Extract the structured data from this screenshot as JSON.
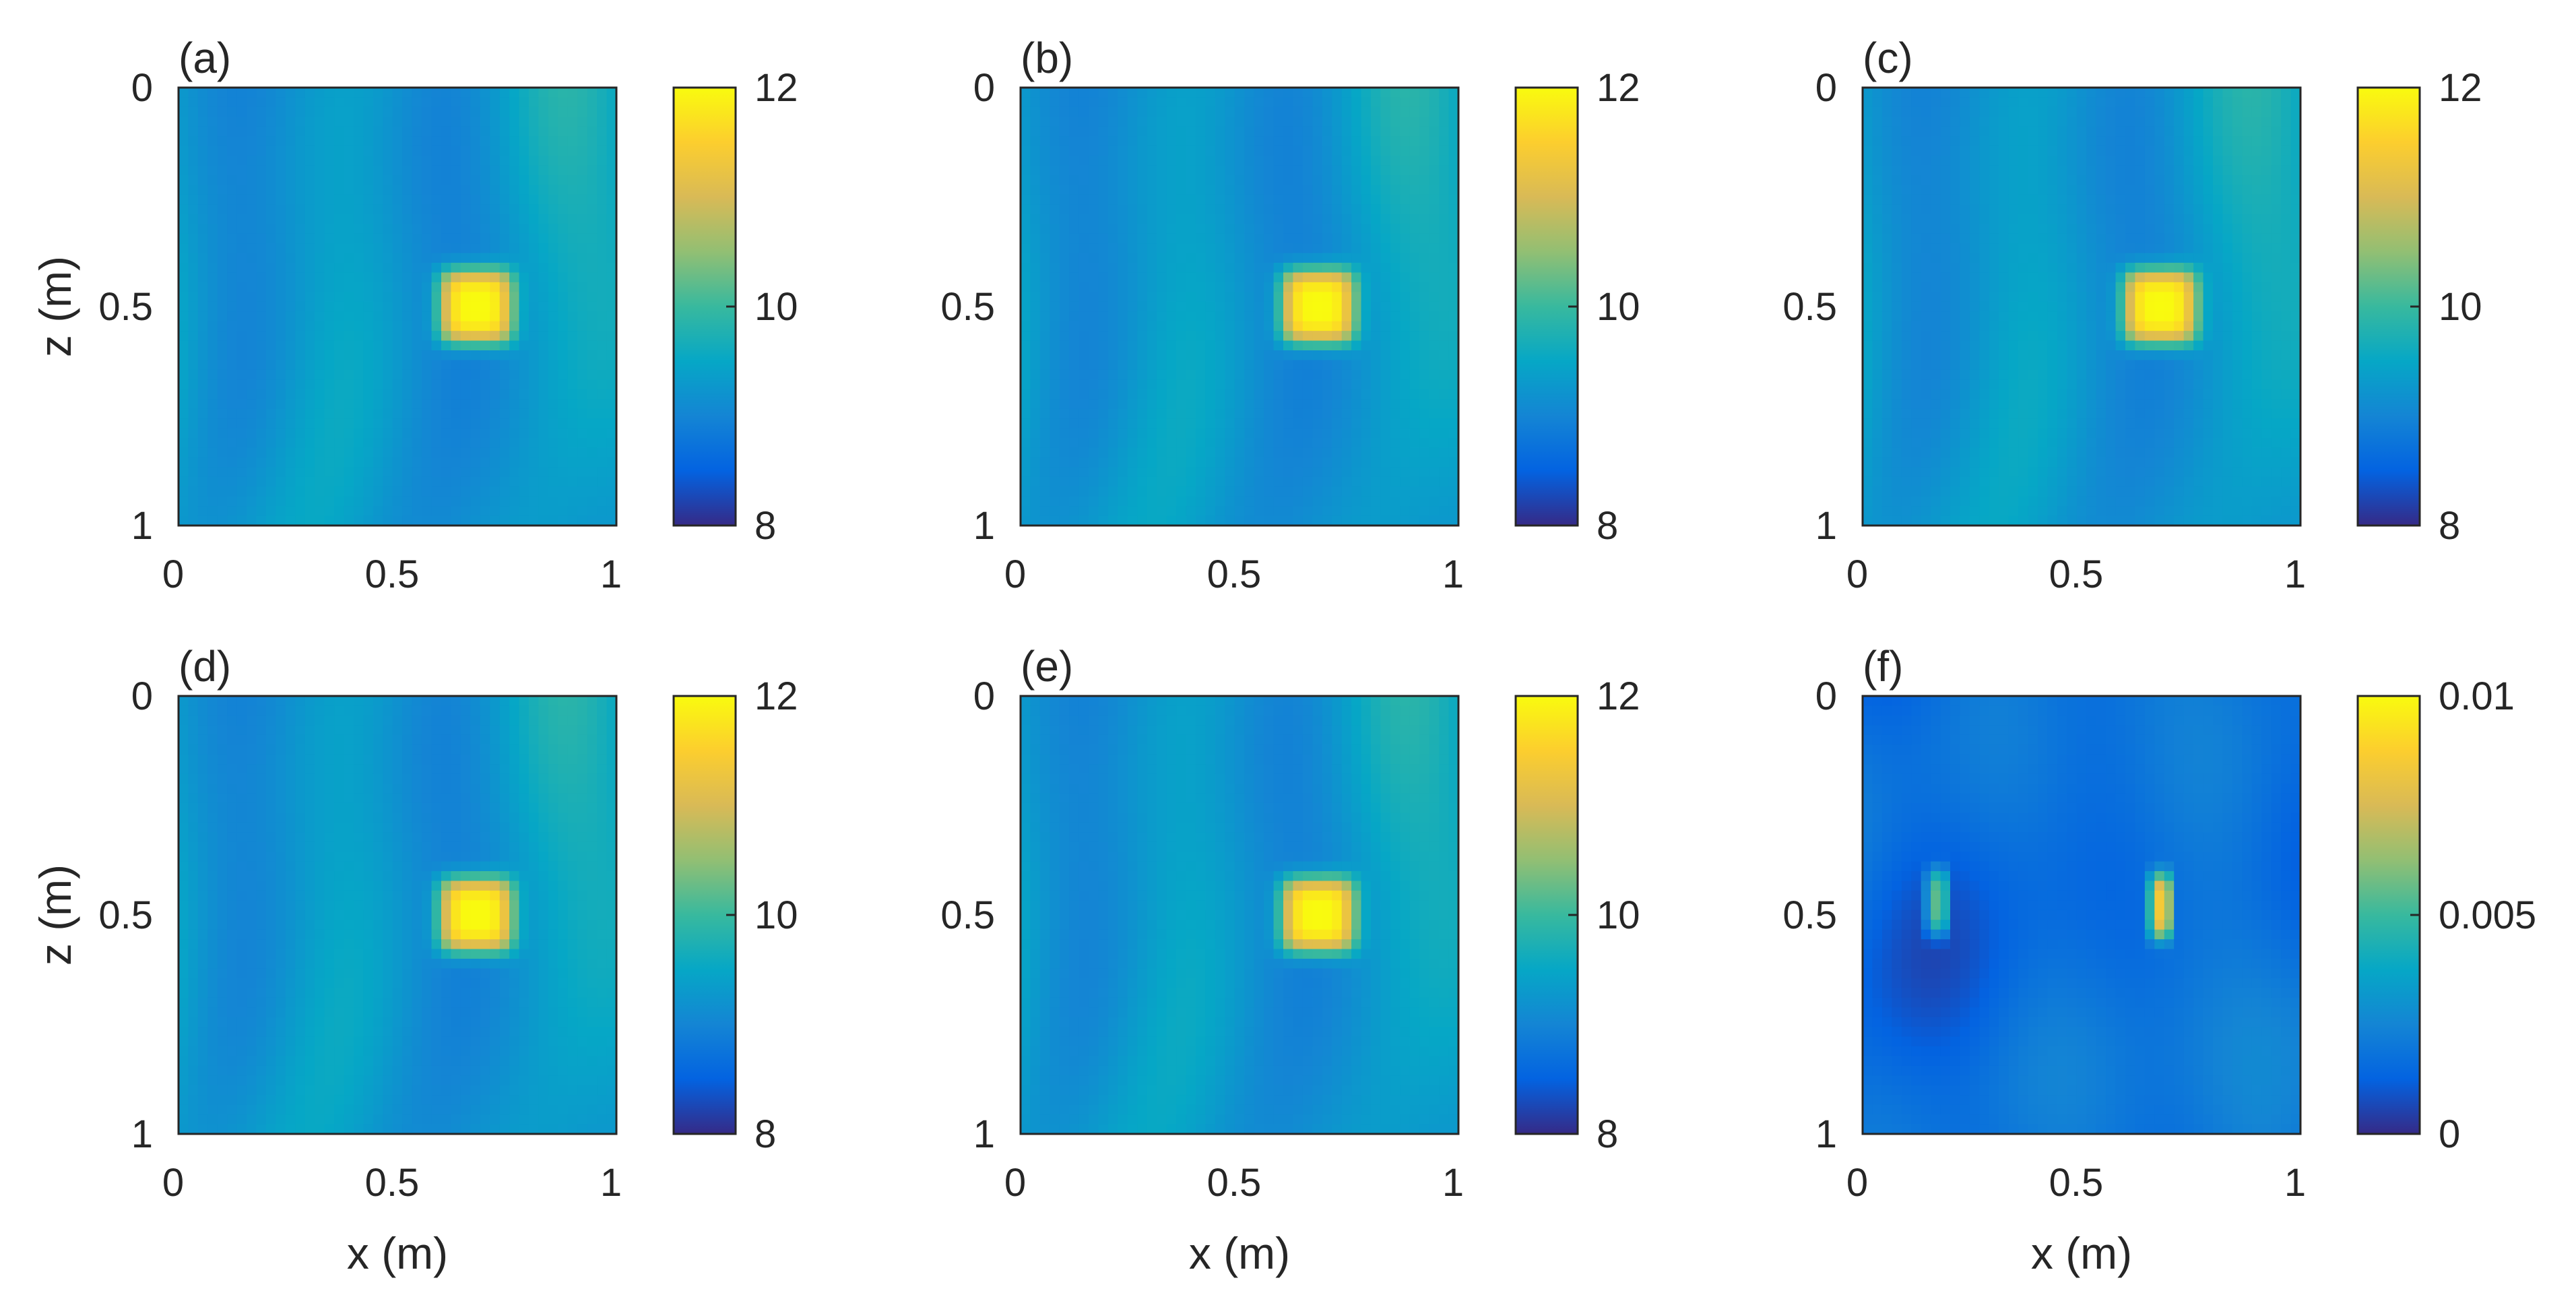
{
  "chart_data": [
    {
      "type": "heatmap",
      "panel_label": "(a)",
      "xlabel": "",
      "ylabel": "z (m)",
      "xlim": [
        0,
        1
      ],
      "ylim": [
        0,
        1
      ],
      "xticks": [
        "0",
        "0.5",
        "1"
      ],
      "yticks": [
        "0",
        "0.5",
        "1"
      ],
      "colorbar": {
        "min": 8,
        "max": 12,
        "ticks": [
          "12",
          "10",
          "8"
        ]
      },
      "colormap": "parula",
      "features": [
        {
          "x": 0.68,
          "z": 0.5,
          "value": 12,
          "label": "anomaly"
        }
      ],
      "background_value": 9.3
    },
    {
      "type": "heatmap",
      "panel_label": "(b)",
      "xlabel": "",
      "ylabel": "",
      "xlim": [
        0,
        1
      ],
      "ylim": [
        0,
        1
      ],
      "xticks": [
        "0",
        "0.5",
        "1"
      ],
      "yticks": [
        "0",
        "0.5",
        "1"
      ],
      "colorbar": {
        "min": 8,
        "max": 12,
        "ticks": [
          "12",
          "10",
          "8"
        ]
      },
      "colormap": "parula",
      "features": [
        {
          "x": 0.68,
          "z": 0.5,
          "value": 12,
          "label": "anomaly"
        }
      ],
      "background_value": 9.3
    },
    {
      "type": "heatmap",
      "panel_label": "(c)",
      "xlabel": "",
      "ylabel": "",
      "xlim": [
        0,
        1
      ],
      "ylim": [
        0,
        1
      ],
      "xticks": [
        "0",
        "0.5",
        "1"
      ],
      "yticks": [
        "0",
        "0.5",
        "1"
      ],
      "colorbar": {
        "min": 8,
        "max": 12,
        "ticks": [
          "12",
          "10",
          "8"
        ]
      },
      "colormap": "parula",
      "features": [
        {
          "x": 0.68,
          "z": 0.5,
          "value": 12,
          "label": "anomaly"
        }
      ],
      "background_value": 9.3
    },
    {
      "type": "heatmap",
      "panel_label": "(d)",
      "xlabel": "x (m)",
      "ylabel": "z (m)",
      "xlim": [
        0,
        1
      ],
      "ylim": [
        0,
        1
      ],
      "xticks": [
        "0",
        "0.5",
        "1"
      ],
      "yticks": [
        "0",
        "0.5",
        "1"
      ],
      "colorbar": {
        "min": 8,
        "max": 12,
        "ticks": [
          "12",
          "10",
          "8"
        ]
      },
      "colormap": "parula",
      "features": [
        {
          "x": 0.68,
          "z": 0.5,
          "value": 12,
          "label": "anomaly"
        }
      ],
      "background_value": 9.3
    },
    {
      "type": "heatmap",
      "panel_label": "(e)",
      "xlabel": "x (m)",
      "ylabel": "",
      "xlim": [
        0,
        1
      ],
      "ylim": [
        0,
        1
      ],
      "xticks": [
        "0",
        "0.5",
        "1"
      ],
      "yticks": [
        "0",
        "0.5",
        "1"
      ],
      "colorbar": {
        "min": 8,
        "max": 12,
        "ticks": [
          "12",
          "10",
          "8"
        ]
      },
      "colormap": "parula",
      "features": [
        {
          "x": 0.68,
          "z": 0.5,
          "value": 12,
          "label": "anomaly"
        }
      ],
      "background_value": 9.3
    },
    {
      "type": "heatmap",
      "panel_label": "(f)",
      "xlabel": "x (m)",
      "ylabel": "",
      "xlim": [
        0,
        1
      ],
      "ylim": [
        0,
        1
      ],
      "xticks": [
        "0",
        "0.5",
        "1"
      ],
      "yticks": [
        "0",
        "0.5",
        "1"
      ],
      "colorbar": {
        "min": 0,
        "max": 0.01,
        "ticks": [
          "0.01",
          "0.005",
          "0"
        ]
      },
      "colormap": "parula",
      "features": [
        {
          "x": 0.68,
          "z": 0.48,
          "value": 0.0085,
          "label": "difference peak"
        },
        {
          "x": 0.17,
          "z": 0.47,
          "value": 0.0055,
          "label": "secondary peak"
        }
      ],
      "background_value": 0.0018
    }
  ]
}
